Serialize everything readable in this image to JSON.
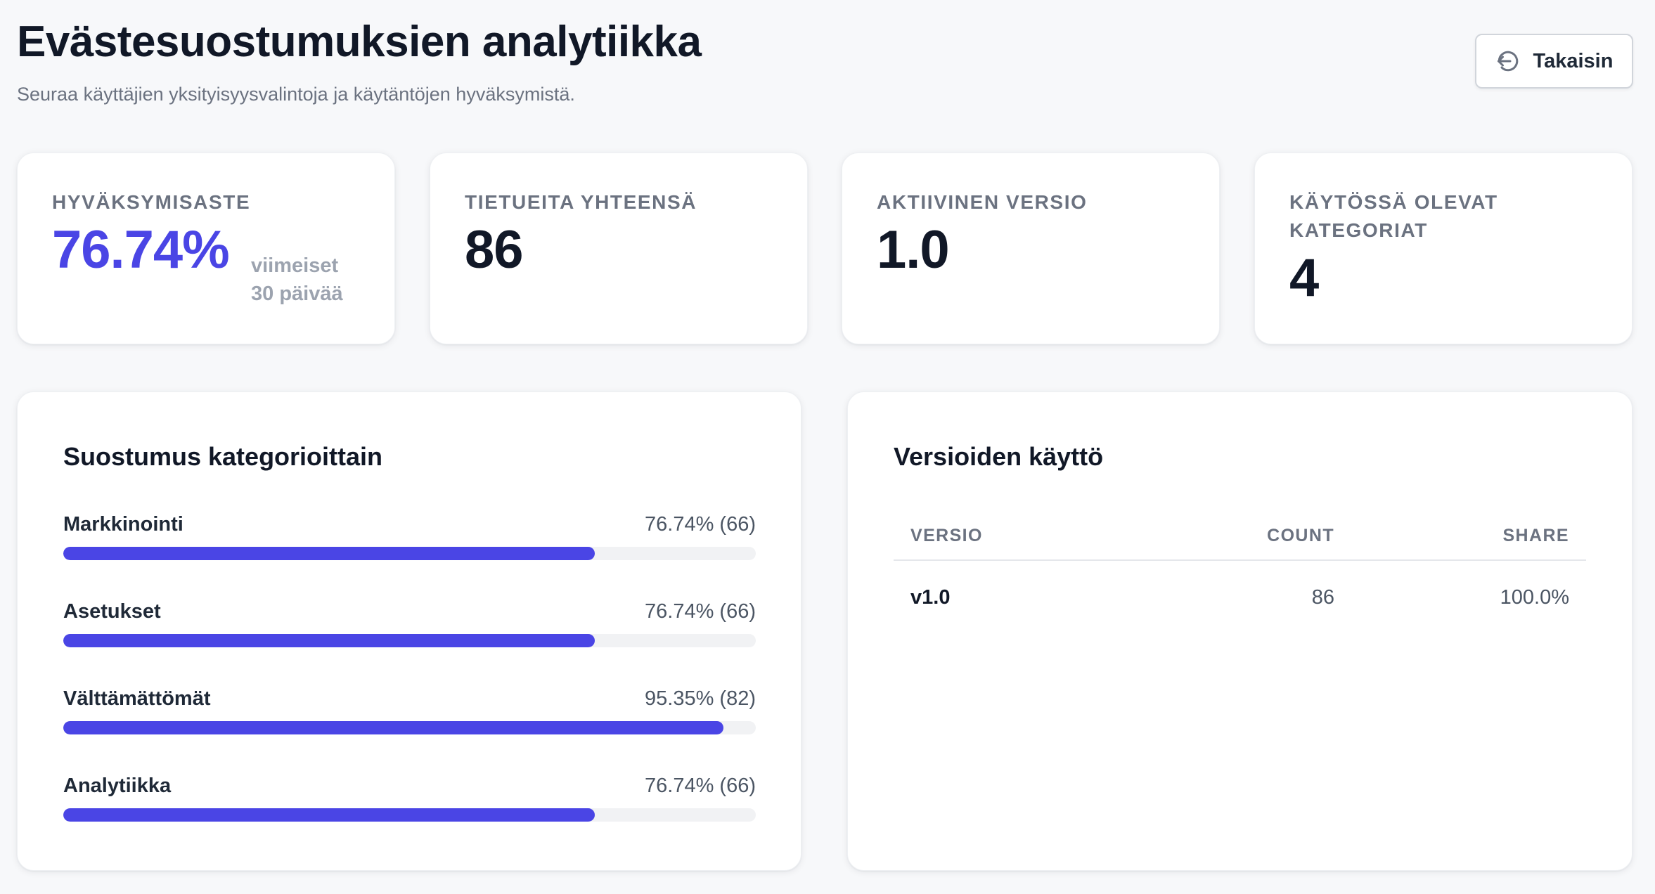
{
  "header": {
    "title": "Evästesuostumuksien analytiikka",
    "subtitle": "Seuraa käyttäjien yksityisyysvalintoja ja käytäntöjen hyväksymistä.",
    "back_label": "Takaisin",
    "back_icon": "back-arrow-icon"
  },
  "stats": [
    {
      "label": "Hyväksymisaste",
      "value": "76.74%",
      "note": "viimeiset 30 päivää"
    },
    {
      "label": "Tietueita yhteensä",
      "value": "86"
    },
    {
      "label": "Aktiivinen versio",
      "value": "1.0"
    },
    {
      "label": "Käytössä olevat kategoriat",
      "value": "4"
    }
  ],
  "categories_panel": {
    "title": "Suostumus kategorioittain",
    "items": [
      {
        "name": "Markkinointi",
        "value_text": "76.74% (66)",
        "percent": 76.74
      },
      {
        "name": "Asetukset",
        "value_text": "76.74% (66)",
        "percent": 76.74
      },
      {
        "name": "Välttämättömät",
        "value_text": "95.35% (82)",
        "percent": 95.35
      },
      {
        "name": "Analytiikka",
        "value_text": "76.74% (66)",
        "percent": 76.74
      }
    ]
  },
  "versions_panel": {
    "title": "Versioiden käyttö",
    "columns": [
      "Versio",
      "Count",
      "Share"
    ],
    "rows": [
      {
        "version": "v1.0",
        "count": "86",
        "share": "100.0%"
      }
    ]
  },
  "colors": {
    "accent": "#4a45e5",
    "background": "#f7f8fa",
    "track": "#f1f2f4"
  }
}
